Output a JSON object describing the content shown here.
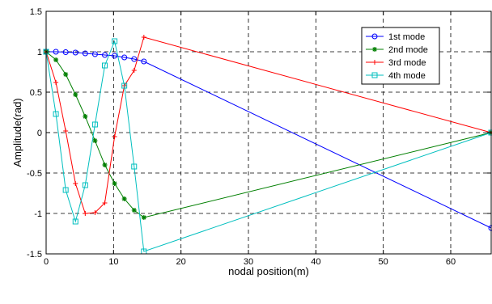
{
  "chart_data": {
    "type": "line",
    "xlabel": "nodal position(m)",
    "ylabel": "Amplitude(rad)",
    "xlim": [
      0,
      66
    ],
    "ylim": [
      -1.5,
      1.5
    ],
    "xticks": [
      0,
      10,
      20,
      30,
      40,
      50,
      60
    ],
    "yticks": [
      -1.5,
      -1,
      -0.5,
      0,
      0.5,
      1,
      1.5
    ],
    "ytick_labels": [
      "-1.5",
      "-1",
      "-0.5",
      "0",
      "0.5",
      "1",
      "1.5"
    ],
    "grid": true,
    "legend_position": "top-right",
    "series": [
      {
        "name": "1st mode",
        "color": "#0000ff",
        "marker": "circle",
        "x": [
          0,
          1.45,
          2.9,
          4.35,
          5.8,
          7.25,
          8.7,
          10.15,
          11.6,
          13.05,
          14.5,
          66
        ],
        "y": [
          1.0,
          1.0,
          0.995,
          0.99,
          0.98,
          0.97,
          0.96,
          0.95,
          0.93,
          0.91,
          0.88,
          -1.18
        ]
      },
      {
        "name": "2nd mode",
        "color": "#007f00",
        "marker": "star",
        "x": [
          0,
          1.45,
          2.9,
          4.35,
          5.8,
          7.25,
          8.7,
          10.15,
          11.6,
          13.05,
          14.5,
          66
        ],
        "y": [
          1.0,
          0.9,
          0.72,
          0.47,
          0.2,
          -0.1,
          -0.4,
          -0.63,
          -0.82,
          -0.96,
          -1.05,
          0.0
        ]
      },
      {
        "name": "3rd mode",
        "color": "#ff0000",
        "marker": "plus",
        "x": [
          0,
          1.45,
          2.9,
          4.35,
          5.8,
          7.25,
          8.7,
          10.15,
          11.6,
          13.05,
          14.5,
          66
        ],
        "y": [
          1.0,
          0.62,
          0.02,
          -0.63,
          -1.0,
          -0.99,
          -0.87,
          -0.05,
          0.58,
          0.77,
          1.18,
          0.0
        ]
      },
      {
        "name": "4th mode",
        "color": "#00bfbf",
        "marker": "square",
        "x": [
          0,
          1.45,
          2.9,
          4.35,
          5.8,
          7.25,
          8.7,
          10.15,
          11.6,
          13.05,
          14.5,
          66
        ],
        "y": [
          1.0,
          0.23,
          -0.71,
          -1.1,
          -0.65,
          0.1,
          0.83,
          1.13,
          0.58,
          -0.42,
          -1.47,
          0.0
        ]
      }
    ]
  }
}
